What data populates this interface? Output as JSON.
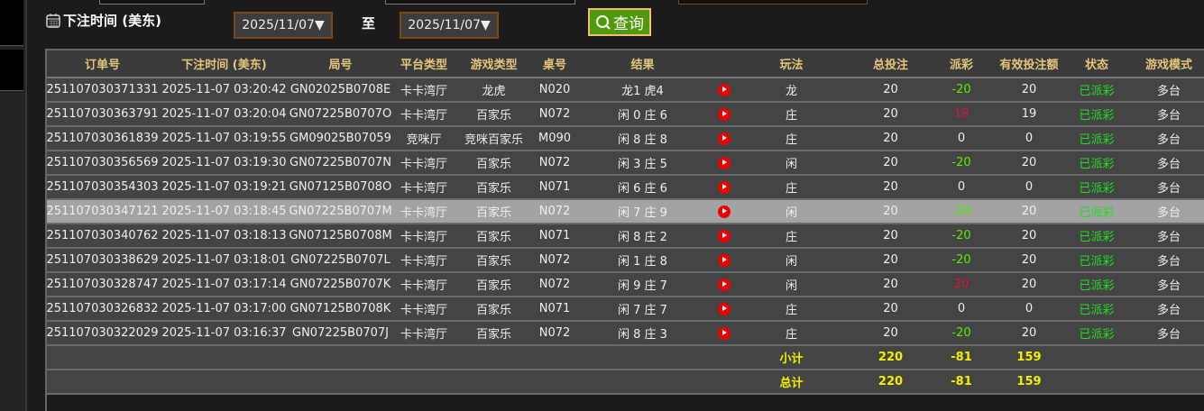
{
  "filter": {
    "label": "下注时间 (美东)",
    "start": "2025/11/07▼",
    "to": "至",
    "end": "2025/11/07▼",
    "query": "查询"
  },
  "columns": [
    "订单号",
    "下注时间 (美东)",
    "局号",
    "平台类型",
    "游戏类型",
    "桌号",
    "结果",
    "",
    "玩法",
    "总投注",
    "派彩",
    "有效投注额",
    "状态",
    "游戏模式"
  ],
  "rows": [
    [
      "251107030371331",
      "2025-11-07 03:20:42",
      "GN02025B0708E",
      "卡卡湾厅",
      "龙虎",
      "N020",
      "龙1 虎4",
      "龙",
      "20",
      "-20",
      "20",
      "已派彩",
      "多台"
    ],
    [
      "251107030363791",
      "2025-11-07 03:20:04",
      "GN07225B0707O",
      "卡卡湾厅",
      "百家乐",
      "N072",
      "闲 0 庄 6",
      "庄",
      "20",
      "19",
      "19",
      "已派彩",
      "多台"
    ],
    [
      "251107030361839",
      "2025-11-07 03:19:55",
      "GM09025B07059",
      "竞咪厅",
      "竞咪百家乐",
      "M090",
      "闲 8 庄 8",
      "庄",
      "20",
      "0",
      "0",
      "已派彩",
      "多台"
    ],
    [
      "251107030356569",
      "2025-11-07 03:19:30",
      "GN07225B0707N",
      "卡卡湾厅",
      "百家乐",
      "N072",
      "闲 3 庄 5",
      "闲",
      "20",
      "-20",
      "20",
      "已派彩",
      "多台"
    ],
    [
      "251107030354303",
      "2025-11-07 03:19:21",
      "GN07125B0708O",
      "卡卡湾厅",
      "百家乐",
      "N071",
      "闲 6 庄 6",
      "庄",
      "20",
      "0",
      "0",
      "已派彩",
      "多台"
    ],
    [
      "251107030347121",
      "2025-11-07 03:18:45",
      "GN07225B0707M",
      "卡卡湾厅",
      "百家乐",
      "N072",
      "闲 7 庄 9",
      "闲",
      "20",
      "-20",
      "20",
      "已派彩",
      "多台"
    ],
    [
      "251107030340762",
      "2025-11-07 03:18:13",
      "GN07125B0708M",
      "卡卡湾厅",
      "百家乐",
      "N071",
      "闲 8 庄 2",
      "庄",
      "20",
      "-20",
      "20",
      "已派彩",
      "多台"
    ],
    [
      "251107030338629",
      "2025-11-07 03:18:01",
      "GN07225B0707L",
      "卡卡湾厅",
      "百家乐",
      "N072",
      "闲 1 庄 8",
      "闲",
      "20",
      "-20",
      "20",
      "已派彩",
      "多台"
    ],
    [
      "251107030328747",
      "2025-11-07 03:17:14",
      "GN07225B0707K",
      "卡卡湾厅",
      "百家乐",
      "N072",
      "闲 9 庄 7",
      "闲",
      "20",
      "20",
      "20",
      "已派彩",
      "多台"
    ],
    [
      "251107030326832",
      "2025-11-07 03:17:00",
      "GN07125B0708K",
      "卡卡湾厅",
      "百家乐",
      "N071",
      "闲 7 庄 7",
      "庄",
      "20",
      "0",
      "0",
      "已派彩",
      "多台"
    ],
    [
      "251107030322029",
      "2025-11-07 03:16:37",
      "GN07225B0707J",
      "卡卡湾厅",
      "百家乐",
      "N072",
      "闲 8 庄 3",
      "庄",
      "20",
      "-20",
      "20",
      "已派彩",
      "多台"
    ]
  ],
  "highlighted_row": 5,
  "subtotal": {
    "label": "小计",
    "bet": "220",
    "payout": "-81",
    "valid": "159"
  },
  "total": {
    "label": "总计",
    "bet": "220",
    "payout": "-81",
    "valid": "159"
  },
  "colors": {
    "header_text": "#e4c67a",
    "negative": "#55ee00",
    "positive": "#e0103a",
    "status": "#22dd22",
    "summary": "#f0f000",
    "query_button": "#4f9a0c"
  },
  "icons": {
    "calendar": "calendar-icon",
    "search": "search-icon",
    "replay": "play-video-icon"
  }
}
